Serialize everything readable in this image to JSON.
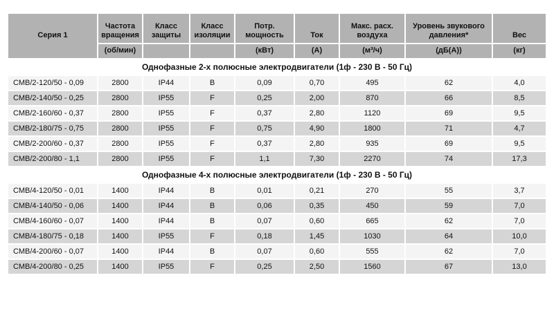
{
  "table": {
    "columns": [
      {
        "title": "Серия 1",
        "unit": ""
      },
      {
        "title": "Частота вращения",
        "unit": "(об/мин)"
      },
      {
        "title": "Класс защиты",
        "unit": ""
      },
      {
        "title": "Класс изоляции",
        "unit": ""
      },
      {
        "title": "Потр. мощность",
        "unit": "(кВт)"
      },
      {
        "title": "Ток",
        "unit": "(А)"
      },
      {
        "title": "Макс. расх. воздуха",
        "unit": "(м³/ч)"
      },
      {
        "title": "Уровень звукового давления*",
        "unit": "(дБ(А))"
      },
      {
        "title": "Вес",
        "unit": "(кг)"
      }
    ],
    "sections": [
      {
        "title": "Однофазные 2-х полюсные электродвигатели (1ф - 230 В - 50 Гц)",
        "rows": [
          [
            "СМВ/2-120/50 - 0,09",
            "2800",
            "IP44",
            "B",
            "0,09",
            "0,70",
            "495",
            "62",
            "4,0"
          ],
          [
            "СМВ/2-140/50 - 0,25",
            "2800",
            "IP55",
            "F",
            "0,25",
            "2,00",
            "870",
            "66",
            "8,5"
          ],
          [
            "СМВ/2-160/60 - 0,37",
            "2800",
            "IP55",
            "F",
            "0,37",
            "2,80",
            "1120",
            "69",
            "9,5"
          ],
          [
            "СМВ/2-180/75 - 0,75",
            "2800",
            "IP55",
            "F",
            "0,75",
            "4,90",
            "1800",
            "71",
            "4,7"
          ],
          [
            "СМВ/2-200/60 - 0,37",
            "2800",
            "IP55",
            "F",
            "0,37",
            "2,80",
            "935",
            "69",
            "9,5"
          ],
          [
            "СМВ/2-200/80 - 1,1",
            "2800",
            "IP55",
            "F",
            "1,1",
            "7,30",
            "2270",
            "74",
            "17,3"
          ]
        ]
      },
      {
        "title": "Однофазные 4-х полюсные электродвигатели (1ф - 230 В - 50 Гц)",
        "rows": [
          [
            "СМВ/4-120/50 - 0,01",
            "1400",
            "IP44",
            "B",
            "0,01",
            "0,21",
            "270",
            "55",
            "3,7"
          ],
          [
            "СМВ/4-140/50 - 0,06",
            "1400",
            "IP44",
            "B",
            "0,06",
            "0,35",
            "450",
            "59",
            "7,0"
          ],
          [
            "СМВ/4-160/60 - 0,07",
            "1400",
            "IP44",
            "B",
            "0,07",
            "0,60",
            "665",
            "62",
            "7,0"
          ],
          [
            "СМВ/4-180/75 - 0,18",
            "1400",
            "IP55",
            "F",
            "0,18",
            "1,45",
            "1030",
            "64",
            "10,0"
          ],
          [
            "СМВ/4-200/60 - 0,07",
            "1400",
            "IP44",
            "B",
            "0,07",
            "0,60",
            "555",
            "62",
            "7,0"
          ],
          [
            "СМВ/4-200/80 - 0,25",
            "1400",
            "IP55",
            "F",
            "0,25",
            "2,50",
            "1560",
            "67",
            "13,0"
          ]
        ]
      }
    ],
    "colors": {
      "header_bg": "#b2b2b2",
      "row_light": "#f4f4f4",
      "row_dark": "#d5d5d5",
      "section_bg": "#ffffff",
      "border": "#ffffff"
    }
  }
}
